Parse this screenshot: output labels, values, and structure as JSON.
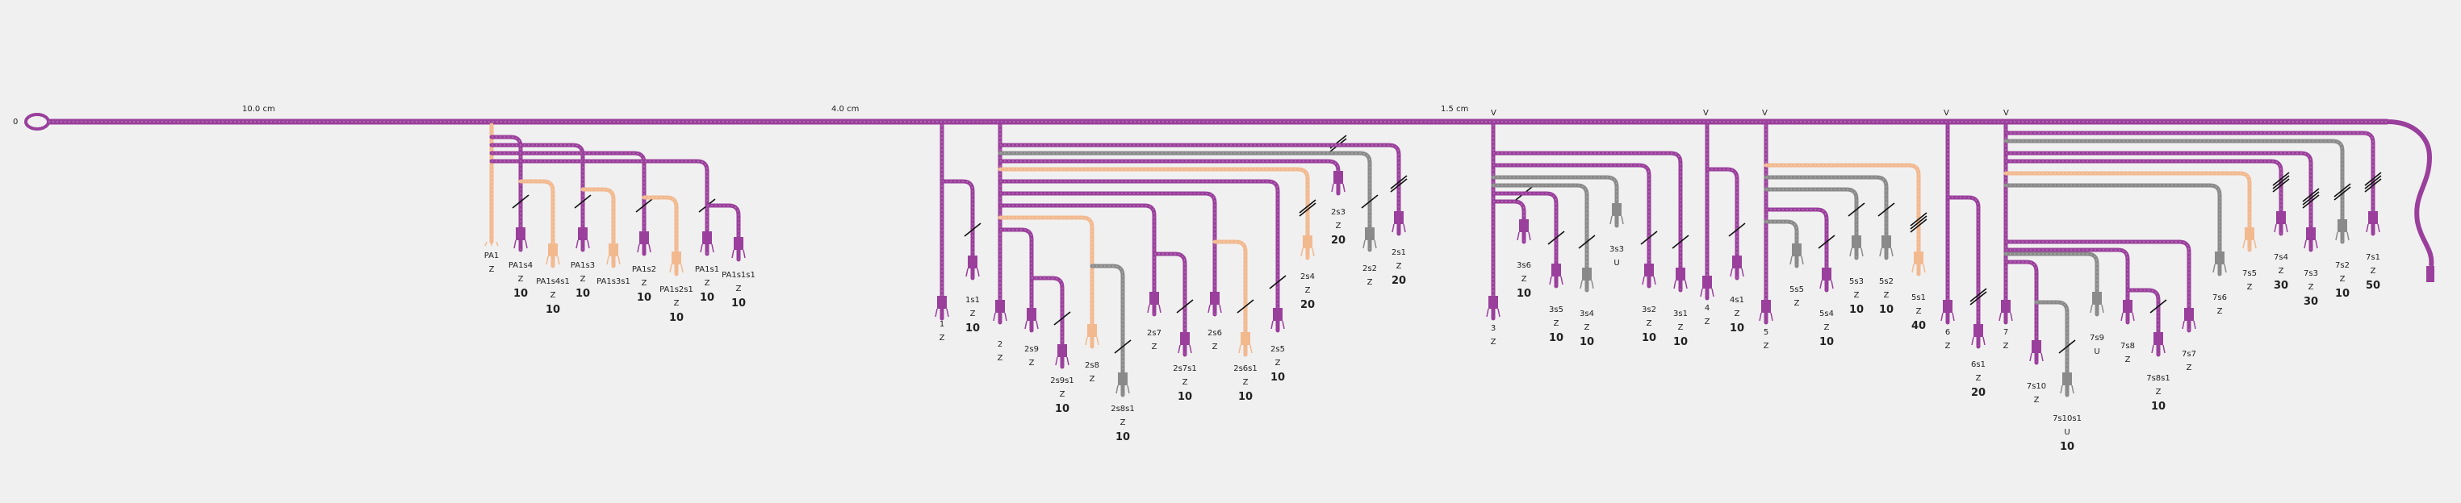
{
  "colors": {
    "purple": "#9a3f9c",
    "peach": "#f2b98f",
    "gray": "#8a8a8a",
    "background": "#f0f0f0",
    "ink": "#111111"
  },
  "start_marker": "0",
  "scale_labels": [
    "10.0 cm",
    "4.0 cm",
    "1.5 cm"
  ],
  "cord_groups": [
    {
      "cords": [
        {
          "name": "PA1",
          "color": "peach",
          "knot": "Z",
          "count": "",
          "subs": []
        },
        {
          "name": "PA1s4",
          "color": "purple",
          "knot": "Z",
          "count": "10",
          "subs": [
            {
              "name": "PA1s4s1",
              "color": "peach",
              "knot": "Z",
              "count": "10"
            }
          ]
        },
        {
          "name": "PA1s3",
          "color": "purple",
          "knot": "Z",
          "count": "10",
          "subs": [
            {
              "name": "PA1s3s1",
              "color": "peach",
              "knot": "",
              "count": ""
            }
          ]
        },
        {
          "name": "PA1s2",
          "color": "purple",
          "knot": "Z",
          "count": "10",
          "subs": [
            {
              "name": "PA1s2s1",
              "color": "peach",
              "knot": "Z",
              "count": "10"
            }
          ]
        },
        {
          "name": "PA1s1",
          "color": "purple",
          "knot": "Z",
          "count": "10",
          "subs": [
            {
              "name": "PA1s1s1",
              "color": "purple",
              "knot": "Z",
              "count": "10"
            }
          ]
        }
      ]
    },
    {
      "cords": [
        {
          "name": "1",
          "color": "purple",
          "knot": "Z",
          "count": "",
          "subs": [
            {
              "name": "1s1",
              "color": "purple",
              "knot": "Z",
              "count": "10"
            }
          ]
        },
        {
          "name": "2",
          "color": "purple",
          "knot": "Z",
          "count": "",
          "subs": [
            {
              "name": "2s9",
              "color": "purple",
              "knot": "Z",
              "count": "",
              "subs2": [
                {
                  "name": "2s9s1",
                  "color": "purple",
                  "knot": "Z",
                  "count": "10"
                }
              ]
            },
            {
              "name": "2s8",
              "color": "peach",
              "knot": "Z",
              "count": "",
              "subs2": [
                {
                  "name": "2s8s1",
                  "color": "gray",
                  "knot": "Z",
                  "count": "10"
                }
              ]
            },
            {
              "name": "2s7",
              "color": "purple",
              "knot": "Z",
              "count": "",
              "subs2": [
                {
                  "name": "2s7s1",
                  "color": "purple",
                  "knot": "Z",
                  "count": "10"
                }
              ]
            },
            {
              "name": "2s6",
              "color": "purple",
              "knot": "Z",
              "count": "",
              "subs2": [
                {
                  "name": "2s6s1",
                  "color": "peach",
                  "knot": "Z",
                  "count": "10"
                }
              ]
            },
            {
              "name": "2s5",
              "color": "purple",
              "knot": "Z",
              "count": "10"
            },
            {
              "name": "2s4",
              "color": "peach",
              "knot": "Z",
              "count": "20"
            },
            {
              "name": "2s3",
              "color": "purple",
              "knot": "Z",
              "count": "20"
            },
            {
              "name": "2s2",
              "color": "gray",
              "knot": "Z",
              "count": ""
            },
            {
              "name": "2s1",
              "color": "purple",
              "knot": "Z",
              "count": "20"
            }
          ]
        }
      ]
    },
    {
      "cords": [
        {
          "name": "3",
          "color": "purple",
          "knot": "Z",
          "count": "",
          "subs": [
            {
              "name": "3s6",
              "color": "purple",
              "knot": "Z",
              "count": "10"
            },
            {
              "name": "3s5",
              "color": "purple",
              "knot": "Z",
              "count": "10"
            },
            {
              "name": "3s4",
              "color": "gray",
              "knot": "Z",
              "count": "10"
            },
            {
              "name": "3s3",
              "color": "gray",
              "knot": "U",
              "count": ""
            },
            {
              "name": "3s2",
              "color": "purple",
              "knot": "Z",
              "count": "10"
            },
            {
              "name": "3s1",
              "color": "purple",
              "knot": "Z",
              "count": "10"
            }
          ]
        },
        {
          "name": "4",
          "color": "purple",
          "knot": "Z",
          "count": "",
          "subs": [
            {
              "name": "4s1",
              "color": "purple",
              "knot": "Z",
              "count": "10"
            }
          ]
        },
        {
          "name": "5",
          "color": "purple",
          "knot": "Z",
          "count": "",
          "subs": [
            {
              "name": "5s5",
              "color": "gray",
              "knot": "Z",
              "count": ""
            },
            {
              "name": "5s4",
              "color": "purple",
              "knot": "Z",
              "count": "10"
            },
            {
              "name": "5s3",
              "color": "gray",
              "knot": "Z",
              "count": "10"
            },
            {
              "name": "5s2",
              "color": "gray",
              "knot": "Z",
              "count": "10"
            },
            {
              "name": "5s1",
              "color": "peach",
              "knot": "Z",
              "count": "40"
            }
          ]
        },
        {
          "name": "6",
          "color": "purple",
          "knot": "Z",
          "count": "",
          "subs": [
            {
              "name": "6s1",
              "color": "purple",
              "knot": "Z",
              "count": "20"
            }
          ]
        },
        {
          "name": "7",
          "color": "purple",
          "knot": "Z",
          "count": "",
          "subs": [
            {
              "name": "7s10",
              "color": "purple",
              "knot": "Z",
              "count": "",
              "subs2": [
                {
                  "name": "7s10s1",
                  "color": "gray",
                  "knot": "U",
                  "count": "10"
                }
              ]
            },
            {
              "name": "7s9",
              "color": "gray",
              "knot": "U",
              "count": ""
            },
            {
              "name": "7s8",
              "color": "purple",
              "knot": "Z",
              "count": "",
              "subs2": [
                {
                  "name": "7s8s1",
                  "color": "purple",
                  "knot": "Z",
                  "count": "10"
                }
              ]
            },
            {
              "name": "7s7",
              "color": "purple",
              "knot": "Z",
              "count": ""
            },
            {
              "name": "7s6",
              "color": "gray",
              "knot": "Z",
              "count": ""
            },
            {
              "name": "7s5",
              "color": "peach",
              "knot": "Z",
              "count": ""
            },
            {
              "name": "7s4",
              "color": "purple",
              "knot": "Z",
              "count": "30"
            },
            {
              "name": "7s3",
              "color": "purple",
              "knot": "Z",
              "count": "30"
            },
            {
              "name": "7s2",
              "color": "gray",
              "knot": "Z",
              "count": "10"
            },
            {
              "name": "7s1",
              "color": "purple",
              "knot": "Z",
              "count": "50"
            }
          ]
        }
      ]
    }
  ],
  "v_markers": [
    "V",
    "V",
    "V",
    "V",
    "V"
  ]
}
